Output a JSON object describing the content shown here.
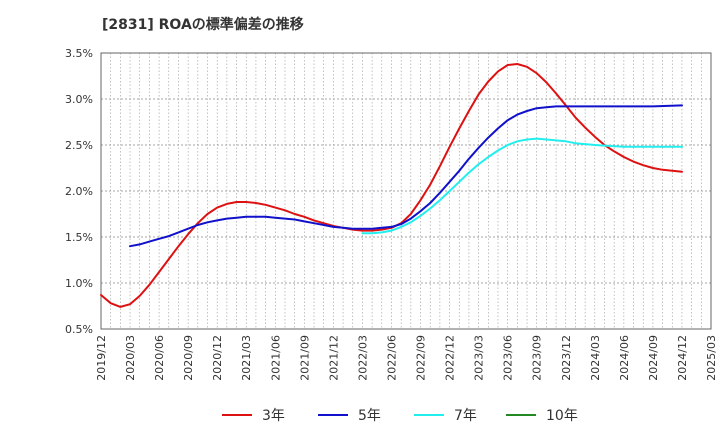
{
  "title": "[2831]  ROAの標準偏差の推移",
  "chart_data": {
    "type": "line",
    "title": "[2831]  ROAの標準偏差の推移",
    "xlabel": "",
    "ylabel": "",
    "x_ticks": [
      "2019/12",
      "2020/03",
      "2020/06",
      "2020/09",
      "2020/12",
      "2021/03",
      "2021/06",
      "2021/09",
      "2021/12",
      "2022/03",
      "2022/06",
      "2022/09",
      "2022/12",
      "2023/03",
      "2023/06",
      "2023/09",
      "2023/12",
      "2024/03",
      "2024/06",
      "2024/09",
      "2024/12",
      "2025/03"
    ],
    "ylim": [
      0.5,
      3.5
    ],
    "y_ticks": [
      0.5,
      1.0,
      1.5,
      2.0,
      2.5,
      3.0,
      3.5
    ],
    "y_tick_suffix": "%",
    "grid": true,
    "legend_position": "bottom",
    "series": [
      {
        "name": "3年",
        "color": "#dd1111",
        "points": [
          [
            "2019/12",
            0.87
          ],
          [
            "2020/01",
            0.78
          ],
          [
            "2020/02",
            0.74
          ],
          [
            "2020/03",
            0.77
          ],
          [
            "2020/04",
            0.86
          ],
          [
            "2020/05",
            0.98
          ],
          [
            "2020/06",
            1.12
          ],
          [
            "2020/07",
            1.26
          ],
          [
            "2020/08",
            1.4
          ],
          [
            "2020/09",
            1.53
          ],
          [
            "2020/10",
            1.65
          ],
          [
            "2020/11",
            1.75
          ],
          [
            "2020/12",
            1.82
          ],
          [
            "2021/01",
            1.86
          ],
          [
            "2021/02",
            1.88
          ],
          [
            "2021/03",
            1.88
          ],
          [
            "2021/04",
            1.87
          ],
          [
            "2021/05",
            1.85
          ],
          [
            "2021/06",
            1.82
          ],
          [
            "2021/07",
            1.79
          ],
          [
            "2021/08",
            1.75
          ],
          [
            "2021/09",
            1.72
          ],
          [
            "2021/10",
            1.68
          ],
          [
            "2021/11",
            1.65
          ],
          [
            "2021/12",
            1.62
          ],
          [
            "2022/01",
            1.6
          ],
          [
            "2022/02",
            1.58
          ],
          [
            "2022/03",
            1.57
          ],
          [
            "2022/04",
            1.57
          ],
          [
            "2022/05",
            1.58
          ],
          [
            "2022/06",
            1.6
          ],
          [
            "2022/07",
            1.65
          ],
          [
            "2022/08",
            1.75
          ],
          [
            "2022/09",
            1.9
          ],
          [
            "2022/10",
            2.07
          ],
          [
            "2022/11",
            2.27
          ],
          [
            "2022/12",
            2.48
          ],
          [
            "2023/01",
            2.68
          ],
          [
            "2023/02",
            2.87
          ],
          [
            "2023/03",
            3.05
          ],
          [
            "2023/04",
            3.19
          ],
          [
            "2023/05",
            3.3
          ],
          [
            "2023/06",
            3.37
          ],
          [
            "2023/07",
            3.38
          ],
          [
            "2023/08",
            3.35
          ],
          [
            "2023/09",
            3.28
          ],
          [
            "2023/10",
            3.18
          ],
          [
            "2023/11",
            3.06
          ],
          [
            "2023/12",
            2.93
          ],
          [
            "2024/01",
            2.8
          ],
          [
            "2024/02",
            2.69
          ],
          [
            "2024/03",
            2.59
          ],
          [
            "2024/04",
            2.5
          ],
          [
            "2024/05",
            2.43
          ],
          [
            "2024/06",
            2.37
          ],
          [
            "2024/07",
            2.32
          ],
          [
            "2024/08",
            2.28
          ],
          [
            "2024/09",
            2.25
          ],
          [
            "2024/10",
            2.23
          ],
          [
            "2024/11",
            2.22
          ],
          [
            "2024/12",
            2.21
          ]
        ]
      },
      {
        "name": "5年",
        "color": "#1111cc",
        "points": [
          [
            "2020/03",
            1.4
          ],
          [
            "2020/04",
            1.42
          ],
          [
            "2020/05",
            1.45
          ],
          [
            "2020/06",
            1.48
          ],
          [
            "2020/07",
            1.51
          ],
          [
            "2020/08",
            1.55
          ],
          [
            "2020/09",
            1.59
          ],
          [
            "2020/10",
            1.63
          ],
          [
            "2020/11",
            1.66
          ],
          [
            "2020/12",
            1.68
          ],
          [
            "2021/01",
            1.7
          ],
          [
            "2021/02",
            1.71
          ],
          [
            "2021/03",
            1.72
          ],
          [
            "2021/04",
            1.72
          ],
          [
            "2021/05",
            1.72
          ],
          [
            "2021/06",
            1.71
          ],
          [
            "2021/07",
            1.7
          ],
          [
            "2021/08",
            1.69
          ],
          [
            "2021/09",
            1.67
          ],
          [
            "2021/10",
            1.65
          ],
          [
            "2021/11",
            1.63
          ],
          [
            "2021/12",
            1.61
          ],
          [
            "2022/01",
            1.6
          ],
          [
            "2022/02",
            1.59
          ],
          [
            "2022/03",
            1.59
          ],
          [
            "2022/04",
            1.59
          ],
          [
            "2022/05",
            1.6
          ],
          [
            "2022/06",
            1.61
          ],
          [
            "2022/07",
            1.64
          ],
          [
            "2022/08",
            1.7
          ],
          [
            "2022/09",
            1.78
          ],
          [
            "2022/10",
            1.87
          ],
          [
            "2022/11",
            1.98
          ],
          [
            "2022/12",
            2.1
          ],
          [
            "2023/01",
            2.22
          ],
          [
            "2023/02",
            2.35
          ],
          [
            "2023/03",
            2.47
          ],
          [
            "2023/04",
            2.58
          ],
          [
            "2023/05",
            2.68
          ],
          [
            "2023/06",
            2.77
          ],
          [
            "2023/07",
            2.83
          ],
          [
            "2023/08",
            2.87
          ],
          [
            "2023/09",
            2.9
          ],
          [
            "2023/10",
            2.91
          ],
          [
            "2023/11",
            2.92
          ],
          [
            "2023/12",
            2.92
          ],
          [
            "2024/03",
            2.92
          ],
          [
            "2024/06",
            2.92
          ],
          [
            "2024/09",
            2.92
          ],
          [
            "2024/12",
            2.93
          ]
        ]
      },
      {
        "name": "7年",
        "color": "#22eeee",
        "points": [
          [
            "2022/03",
            1.54
          ],
          [
            "2022/04",
            1.54
          ],
          [
            "2022/05",
            1.55
          ],
          [
            "2022/06",
            1.57
          ],
          [
            "2022/07",
            1.61
          ],
          [
            "2022/08",
            1.66
          ],
          [
            "2022/09",
            1.73
          ],
          [
            "2022/10",
            1.81
          ],
          [
            "2022/11",
            1.9
          ],
          [
            "2022/12",
            2.0
          ],
          [
            "2023/01",
            2.1
          ],
          [
            "2023/02",
            2.2
          ],
          [
            "2023/03",
            2.29
          ],
          [
            "2023/04",
            2.37
          ],
          [
            "2023/05",
            2.44
          ],
          [
            "2023/06",
            2.5
          ],
          [
            "2023/07",
            2.54
          ],
          [
            "2023/08",
            2.56
          ],
          [
            "2023/09",
            2.57
          ],
          [
            "2023/10",
            2.56
          ],
          [
            "2023/11",
            2.55
          ],
          [
            "2023/12",
            2.54
          ],
          [
            "2024/01",
            2.52
          ],
          [
            "2024/02",
            2.51
          ],
          [
            "2024/03",
            2.5
          ],
          [
            "2024/06",
            2.48
          ],
          [
            "2024/09",
            2.48
          ],
          [
            "2024/12",
            2.48
          ]
        ]
      },
      {
        "name": "10年",
        "color": "#228822",
        "points": []
      }
    ]
  }
}
